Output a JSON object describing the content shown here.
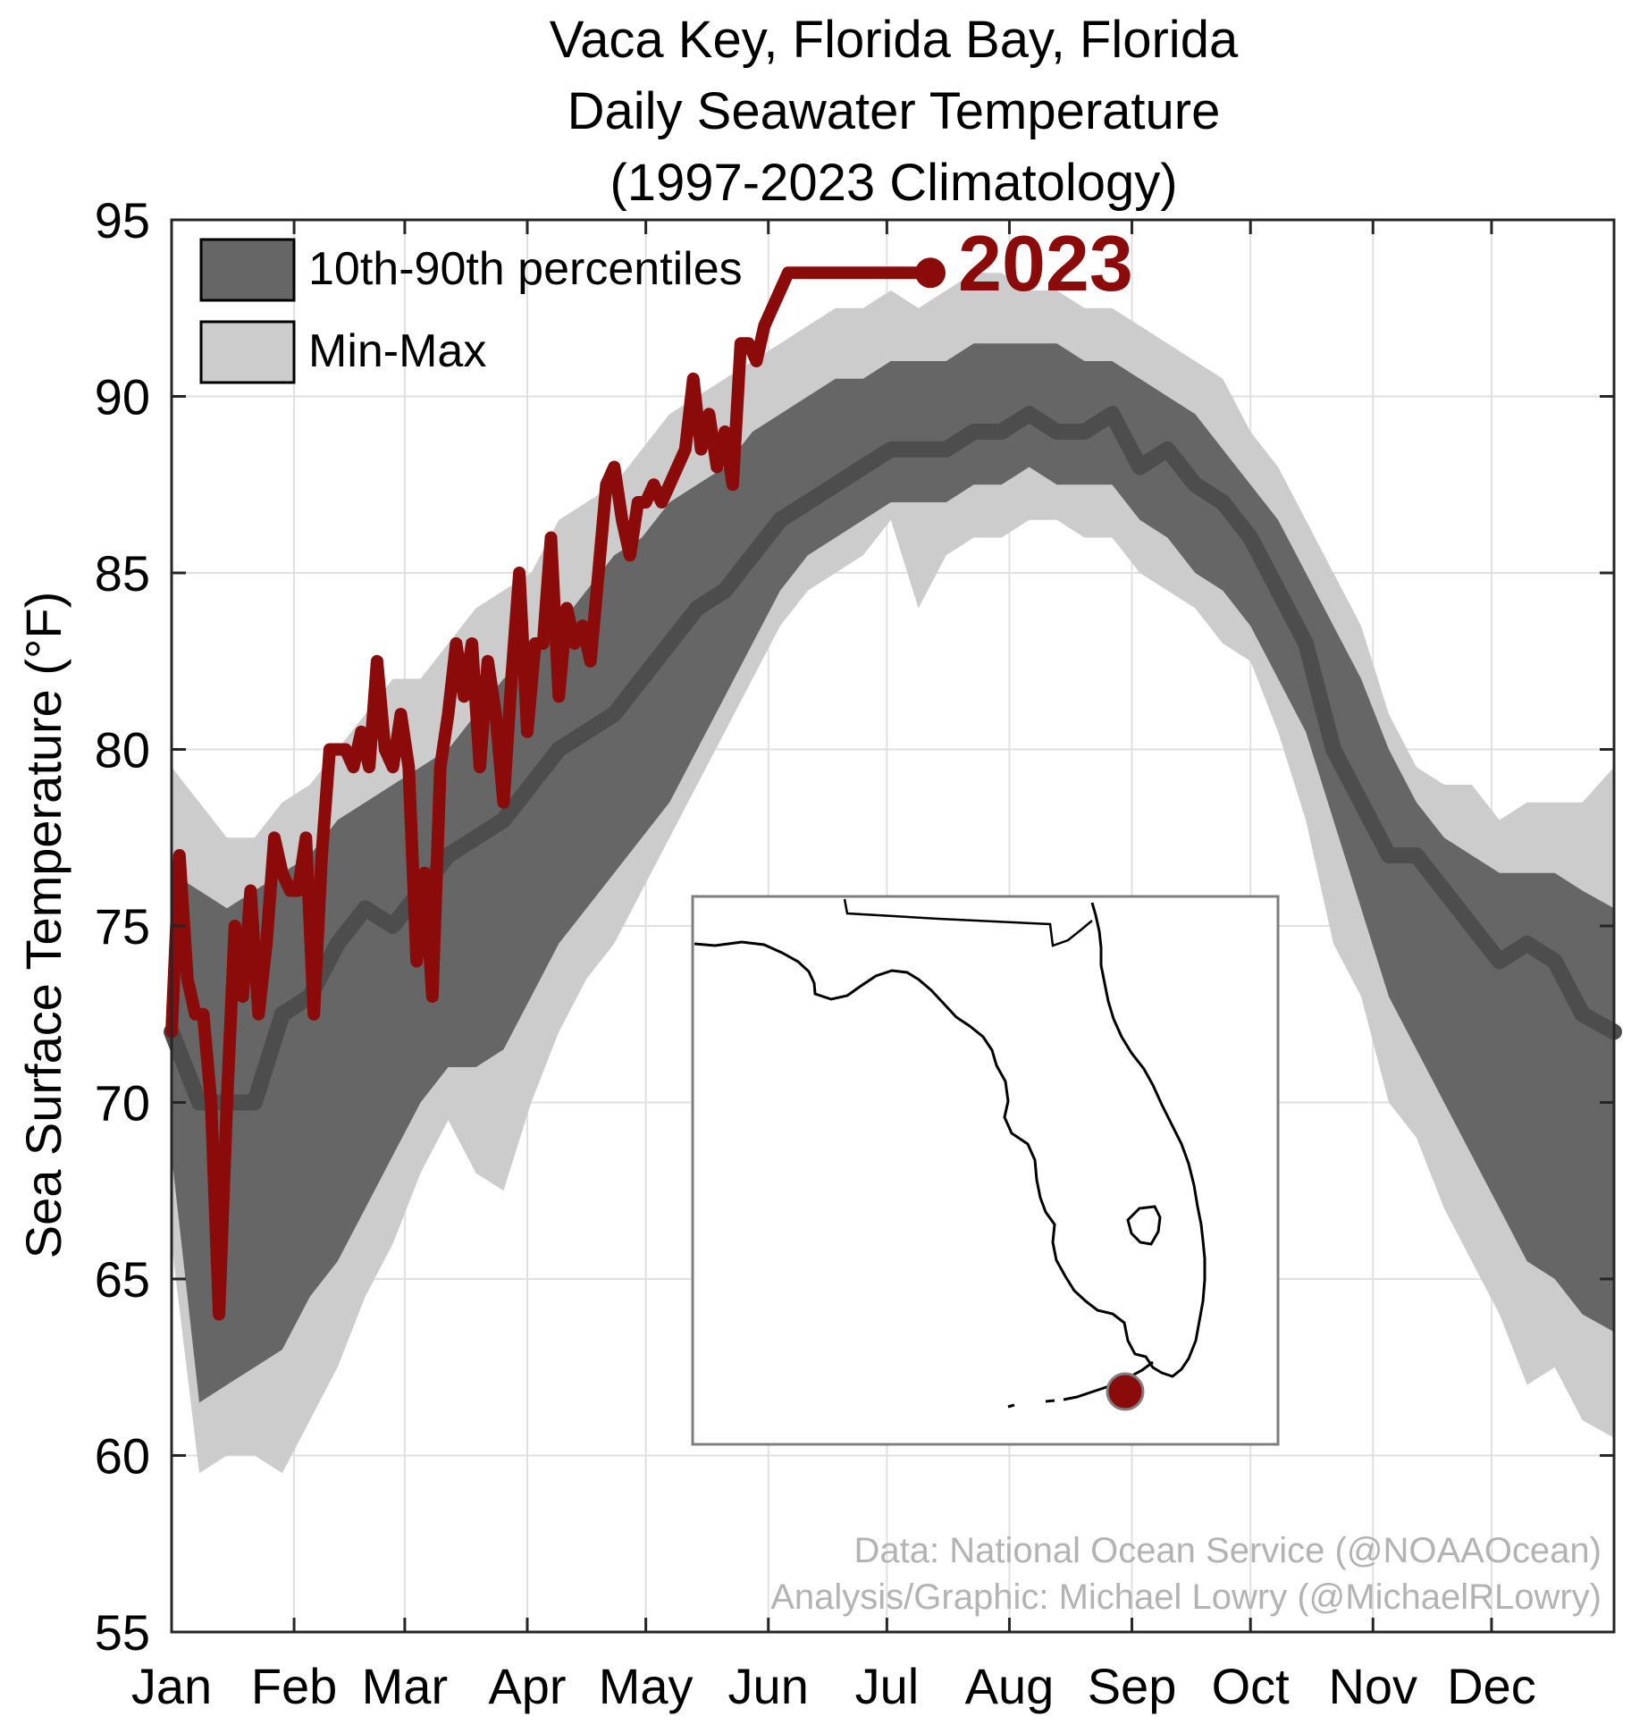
{
  "chart_data": {
    "type": "area",
    "title": [
      "Vaca Key, Florida Bay, Florida",
      "Daily Seawater Temperature",
      "(1997-2023 Climatology)"
    ],
    "ylabel": "Sea Surface Temperature (°F)",
    "xlabel": "",
    "ylim": [
      55,
      95
    ],
    "yticks": [
      55,
      60,
      65,
      70,
      75,
      80,
      85,
      90,
      95
    ],
    "xlim": [
      1,
      366
    ],
    "months": [
      {
        "label": "Jan",
        "day": 1
      },
      {
        "label": "Feb",
        "day": 32
      },
      {
        "label": "Mar",
        "day": 60
      },
      {
        "label": "Apr",
        "day": 91
      },
      {
        "label": "May",
        "day": 121
      },
      {
        "label": "Jun",
        "day": 152
      },
      {
        "label": "Jul",
        "day": 182
      },
      {
        "label": "Aug",
        "day": 213
      },
      {
        "label": "Sep",
        "day": 244
      },
      {
        "label": "Oct",
        "day": 274
      },
      {
        "label": "Nov",
        "day": 305
      },
      {
        "label": "Dec",
        "day": 335
      }
    ],
    "grid": true,
    "legend": {
      "position": "top-left",
      "entries": [
        {
          "label": "10th-90th percentiles",
          "color": "#666666"
        },
        {
          "label": "Min-Max",
          "color": "#cccccc"
        }
      ]
    },
    "highlight_label": "2023",
    "colors": {
      "p10_90": "#666666",
      "minmax": "#cccccc",
      "median": "#4d4d4d",
      "year2023": "#8b0a0a"
    },
    "climatology": {
      "day": [
        1,
        8,
        15,
        22,
        29,
        36,
        43,
        50,
        57,
        64,
        71,
        78,
        85,
        92,
        99,
        106,
        113,
        120,
        127,
        134,
        141,
        148,
        155,
        162,
        169,
        176,
        183,
        190,
        197,
        204,
        211,
        218,
        225,
        232,
        239,
        246,
        253,
        260,
        267,
        274,
        281,
        288,
        295,
        302,
        309,
        316,
        323,
        330,
        337,
        344,
        351,
        358,
        366
      ],
      "min": [
        66.0,
        59.5,
        60.0,
        60.0,
        59.5,
        61.0,
        62.5,
        64.5,
        66.0,
        68.0,
        69.5,
        68.0,
        67.5,
        70.0,
        72.0,
        73.5,
        74.5,
        76.0,
        77.5,
        79.0,
        80.5,
        82.0,
        83.5,
        84.5,
        85.0,
        85.5,
        86.5,
        84.0,
        85.5,
        86.0,
        86.0,
        86.5,
        86.5,
        86.0,
        86.0,
        85.0,
        84.5,
        84.0,
        83.0,
        82.5,
        80.5,
        78.0,
        74.5,
        73.0,
        70.0,
        69.0,
        67.0,
        65.5,
        64.0,
        62.0,
        62.5,
        61.0,
        60.5
      ],
      "p10": [
        68.5,
        61.5,
        62.0,
        62.5,
        63.0,
        64.5,
        65.5,
        67.0,
        68.5,
        70.0,
        71.0,
        71.0,
        71.5,
        73.0,
        74.5,
        75.5,
        76.5,
        77.5,
        78.5,
        80.0,
        81.5,
        83.0,
        84.5,
        85.5,
        86.0,
        86.5,
        87.0,
        87.0,
        87.0,
        87.5,
        87.5,
        88.0,
        87.5,
        87.5,
        87.5,
        86.5,
        86.0,
        85.0,
        84.5,
        83.5,
        82.0,
        80.5,
        78.0,
        75.5,
        73.0,
        71.5,
        70.0,
        68.5,
        67.0,
        65.5,
        65.0,
        64.0,
        63.5
      ],
      "median": [
        72.0,
        70.0,
        70.0,
        70.0,
        72.5,
        73.0,
        74.5,
        75.5,
        75.0,
        76.0,
        77.0,
        77.5,
        78.0,
        79.0,
        80.0,
        80.5,
        81.0,
        82.0,
        83.0,
        84.0,
        84.5,
        85.5,
        86.5,
        87.0,
        87.5,
        88.0,
        88.5,
        88.5,
        88.5,
        89.0,
        89.0,
        89.5,
        89.0,
        89.0,
        89.5,
        88.0,
        88.5,
        87.5,
        87.0,
        86.0,
        84.5,
        83.0,
        80.0,
        78.5,
        77.0,
        77.0,
        76.0,
        75.0,
        74.0,
        74.5,
        74.0,
        72.5,
        72.0
      ],
      "p90": [
        76.5,
        76.0,
        75.5,
        76.0,
        76.5,
        77.0,
        78.0,
        78.5,
        79.0,
        79.5,
        80.0,
        81.0,
        82.0,
        82.5,
        83.5,
        84.5,
        85.5,
        86.0,
        87.0,
        87.5,
        88.0,
        89.0,
        89.5,
        90.0,
        90.5,
        90.5,
        91.0,
        91.0,
        91.0,
        91.5,
        91.5,
        91.5,
        91.5,
        91.0,
        91.0,
        90.5,
        90.0,
        89.5,
        88.5,
        87.5,
        86.5,
        85.0,
        83.5,
        82.0,
        80.0,
        78.5,
        77.5,
        77.0,
        76.5,
        76.5,
        76.5,
        76.0,
        75.5
      ],
      "max": [
        79.5,
        78.5,
        77.5,
        77.5,
        78.5,
        79.0,
        80.0,
        81.0,
        82.0,
        82.0,
        83.0,
        84.0,
        84.5,
        85.0,
        86.5,
        87.0,
        87.5,
        88.5,
        89.5,
        90.0,
        90.5,
        91.0,
        91.5,
        92.0,
        92.5,
        92.5,
        93.0,
        92.5,
        93.0,
        93.5,
        93.5,
        93.0,
        93.0,
        92.5,
        92.5,
        92.0,
        91.5,
        91.0,
        90.5,
        89.0,
        88.0,
        86.5,
        85.0,
        83.5,
        81.0,
        79.5,
        79.0,
        79.0,
        78.0,
        78.5,
        78.5,
        78.5,
        79.5
      ]
    },
    "series_2023": {
      "day": [
        1,
        3,
        5,
        7,
        9,
        11,
        13,
        15,
        17,
        19,
        21,
        23,
        25,
        27,
        29,
        31,
        33,
        35,
        37,
        39,
        41,
        43,
        45,
        47,
        49,
        51,
        53,
        55,
        57,
        59,
        61,
        63,
        65,
        67,
        69,
        71,
        73,
        75,
        77,
        79,
        81,
        83,
        85,
        87,
        89,
        91,
        93,
        95,
        97,
        99,
        101,
        103,
        105,
        107,
        109,
        111,
        113,
        115,
        117,
        119,
        121,
        123,
        125,
        127,
        129,
        131,
        133,
        135,
        137,
        139,
        141,
        143,
        145,
        147,
        149,
        151,
        153,
        155,
        157,
        159,
        161,
        163,
        165,
        167,
        169,
        171,
        173,
        175,
        177,
        179,
        181,
        183,
        185,
        187,
        189,
        191,
        193
      ],
      "value": [
        72.0,
        77.0,
        73.5,
        72.5,
        72.5,
        70.0,
        64.0,
        70.0,
        75.0,
        73.0,
        76.0,
        72.5,
        74.5,
        77.5,
        76.5,
        76.0,
        76.0,
        77.5,
        72.5,
        77.0,
        80.0,
        80.0,
        80.0,
        79.5,
        80.5,
        79.5,
        82.5,
        80.0,
        79.5,
        81.0,
        79.5,
        74.0,
        76.5,
        73.0,
        79.5,
        81.0,
        83.0,
        81.5,
        83.0,
        79.5,
        82.5,
        81.0,
        78.5,
        82.0,
        85.0,
        80.5,
        83.0,
        83.0,
        86.0,
        81.5,
        84.0,
        83.0,
        83.5,
        82.5,
        85.0,
        87.5,
        88.0,
        86.5,
        85.5,
        87.0,
        87.0,
        87.5,
        87.0,
        87.5,
        88.0,
        88.5,
        90.5,
        88.5,
        89.5,
        88.0,
        89.0,
        87.5,
        91.5,
        91.5,
        91.0,
        92.0,
        92.5,
        93.0,
        93.5,
        93.5,
        93.5,
        93.5,
        93.5,
        93.5,
        93.5,
        93.5,
        93.5,
        93.5,
        93.5,
        93.5,
        93.5,
        93.5,
        93.5,
        93.5,
        93.5,
        93.5,
        93.5
      ]
    }
  },
  "inset": {
    "name": "Florida locator map"
  },
  "credits": {
    "data": "Data: National Ocean Service (@NOAAOcean)",
    "analysis": "Analysis/Graphic: Michael Lowry (@MichaelRLowry)"
  }
}
